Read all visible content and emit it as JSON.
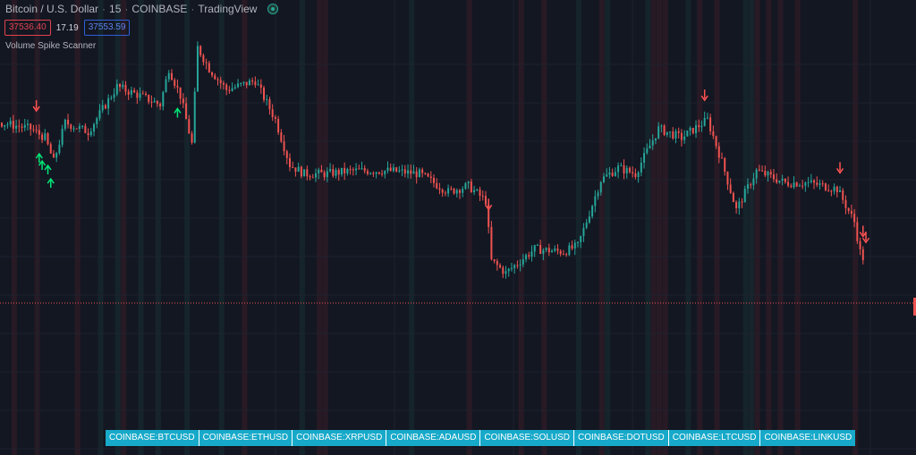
{
  "header": {
    "symbol": "Bitcoin / U.S. Dollar",
    "interval": "15",
    "exchange": "COINBASE",
    "source": "TradingView"
  },
  "prices": {
    "bid": "37536.40",
    "spread": "17.19",
    "ask": "37553.59"
  },
  "indicator": {
    "title": "Volume Spike Scanner"
  },
  "symbols": [
    "COINBASE:BTCUSD",
    "COINBASE:ETHUSD",
    "COINBASE:XRPUSD",
    "COINBASE:ADAUSD",
    "COINBASE:SOLUSD",
    "COINBASE:DOTUSD",
    "COINBASE:LTCUSD",
    "COINBASE:LINKUSD"
  ],
  "colors": {
    "background": "#131722",
    "grid": "#1e222d",
    "up": "#26a69a",
    "down": "#ef5350",
    "up_arrow": "#00e676",
    "down_arrow": "#ff5252",
    "symbol_bg": "#17a9c9"
  },
  "chart_data": {
    "type": "candlestick",
    "grid": true,
    "y_range": [
      37480,
      38700
    ],
    "bar_count": 300,
    "price_path": [
      [
        0,
        38470
      ],
      [
        10,
        38450
      ],
      [
        15,
        38420
      ],
      [
        18,
        38340
      ],
      [
        22,
        38470
      ],
      [
        30,
        38440
      ],
      [
        40,
        38590
      ],
      [
        48,
        38560
      ],
      [
        55,
        38530
      ],
      [
        58,
        38650
      ],
      [
        62,
        38560
      ],
      [
        66,
        38400
      ],
      [
        68,
        38720
      ],
      [
        72,
        38650
      ],
      [
        78,
        38580
      ],
      [
        88,
        38610
      ],
      [
        95,
        38480
      ],
      [
        100,
        38330
      ],
      [
        105,
        38300
      ],
      [
        112,
        38300
      ],
      [
        122,
        38310
      ],
      [
        135,
        38310
      ],
      [
        145,
        38300
      ],
      [
        155,
        38240
      ],
      [
        162,
        38260
      ],
      [
        168,
        38210
      ],
      [
        170,
        38010
      ],
      [
        175,
        37970
      ],
      [
        185,
        38050
      ],
      [
        195,
        38040
      ],
      [
        200,
        38060
      ],
      [
        208,
        38280
      ],
      [
        214,
        38320
      ],
      [
        220,
        38300
      ],
      [
        228,
        38450
      ],
      [
        236,
        38420
      ],
      [
        245,
        38480
      ],
      [
        250,
        38340
      ],
      [
        255,
        38180
      ],
      [
        262,
        38310
      ],
      [
        272,
        38270
      ],
      [
        280,
        38270
      ],
      [
        290,
        38250
      ],
      [
        296,
        38140
      ],
      [
        298,
        38040
      ],
      [
        302,
        37960
      ]
    ],
    "spike_signals": [
      {
        "bar": 12,
        "direction": "down"
      },
      {
        "bar": 13,
        "direction": "up"
      },
      {
        "bar": 14,
        "direction": "up"
      },
      {
        "bar": 16,
        "direction": "up"
      },
      {
        "bar": 17,
        "direction": "up"
      },
      {
        "bar": 61,
        "direction": "up"
      },
      {
        "bar": 169,
        "direction": "down"
      },
      {
        "bar": 244,
        "direction": "down"
      },
      {
        "bar": 291,
        "direction": "down"
      },
      {
        "bar": 299,
        "direction": "down"
      },
      {
        "bar": 300,
        "direction": "down"
      }
    ]
  }
}
